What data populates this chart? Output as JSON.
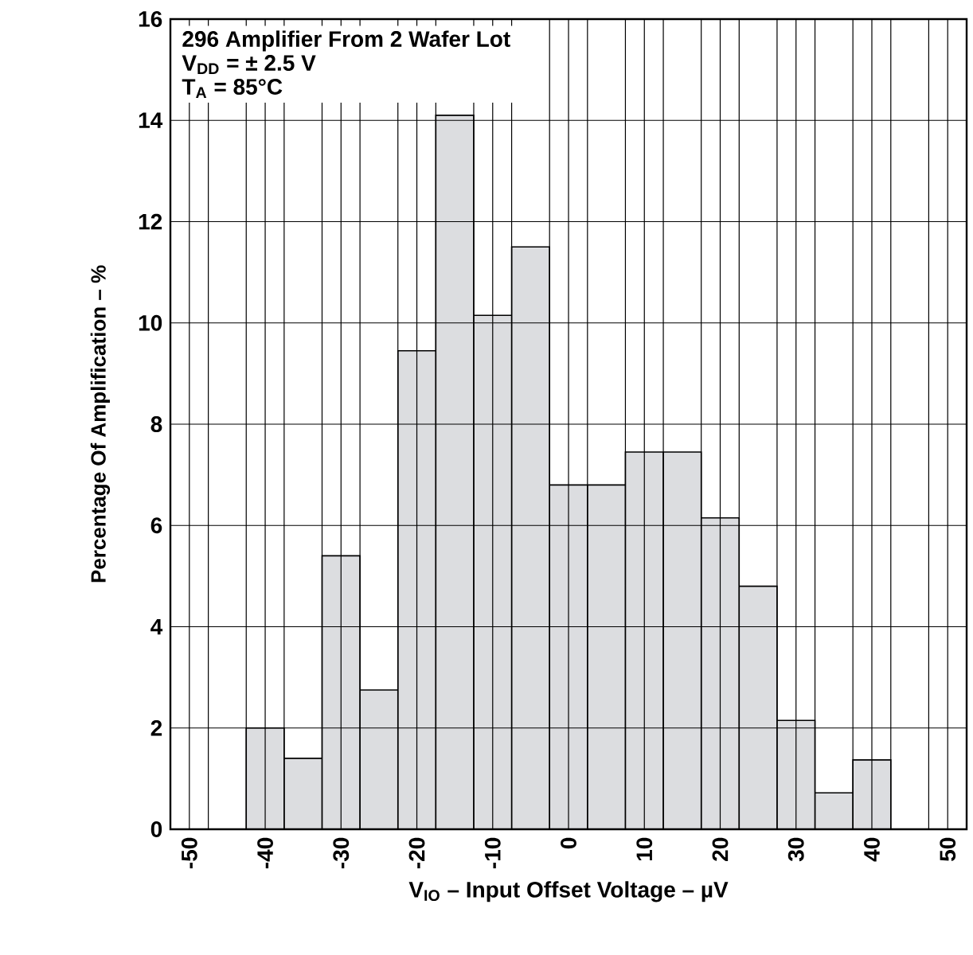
{
  "chart_data": {
    "type": "histogram",
    "annotations": [
      "296 Amplifier From 2 Wafer Lot",
      "V$_{DD}$ = ± 2.5 V",
      "T$_{A}$ = 85°C"
    ],
    "xlabel": "V$_{IO}$ – Input Offset Voltage – µV",
    "ylabel": "Percentage Of Amplification – %",
    "bins": [
      -42.5,
      -37.5,
      -32.5,
      -27.5,
      -22.5,
      -17.5,
      -12.5,
      -7.5,
      -2.5,
      2.5,
      7.5,
      12.5,
      17.5,
      22.5,
      27.5,
      32.5,
      37.5,
      42.5
    ],
    "values": [
      2.0,
      1.4,
      5.4,
      2.75,
      9.45,
      14.1,
      10.15,
      11.5,
      6.8,
      6.8,
      7.45,
      7.45,
      6.15,
      4.8,
      2.15,
      0.72,
      1.37
    ],
    "color": "#dcdde0",
    "xlim": [
      -52.5,
      52.5
    ],
    "xticks": [
      -50,
      -40,
      -30,
      -20,
      -10,
      0,
      10,
      20,
      30,
      40,
      50,
      {
        "value": -47.5,
        "label": null
      },
      {
        "value": -42.5,
        "label": null
      },
      {
        "value": -37.5,
        "label": null
      },
      {
        "value": -32.5,
        "label": null
      },
      {
        "value": -27.5,
        "label": null
      },
      {
        "value": -22.5,
        "label": null
      },
      {
        "value": -17.5,
        "label": null
      },
      {
        "value": -12.5,
        "label": null
      },
      {
        "value": -7.5,
        "label": null
      },
      {
        "value": -2.5,
        "label": null
      },
      {
        "value": 2.5,
        "label": null
      },
      {
        "value": 7.5,
        "label": null
      },
      {
        "value": 12.5,
        "label": null
      },
      {
        "value": 17.5,
        "label": null
      },
      {
        "value": 22.5,
        "label": null
      },
      {
        "value": 27.5,
        "label": null
      },
      {
        "value": 32.5,
        "label": null
      },
      {
        "value": 37.5,
        "label": null
      },
      {
        "value": 42.5,
        "label": null
      },
      {
        "value": 47.5,
        "label": null
      }
    ],
    "ylim": [
      0,
      16
    ],
    "yticks": [
      0,
      2,
      4,
      6,
      8,
      10,
      12,
      14,
      16
    ],
    "grid": true
  }
}
